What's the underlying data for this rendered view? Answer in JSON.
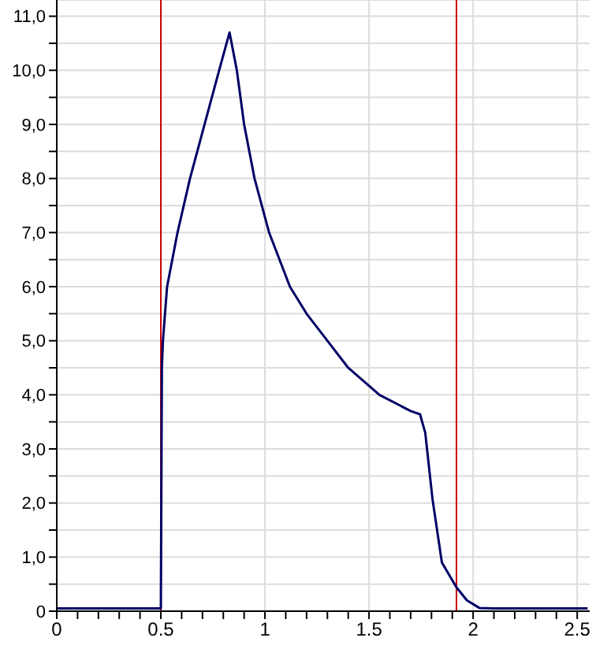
{
  "chart_data": {
    "type": "line",
    "x": [
      0,
      0.1,
      0.2,
      0.3,
      0.4,
      0.49,
      0.5,
      0.505,
      0.51,
      0.53,
      0.58,
      0.64,
      0.71,
      0.78,
      0.83,
      0.865,
      0.9,
      0.95,
      1.02,
      1.12,
      1.2,
      1.3,
      1.4,
      1.55,
      1.65,
      1.7,
      1.745,
      1.77,
      1.805,
      1.85,
      1.92,
      1.97,
      2.03,
      2.1,
      2.2,
      2.3,
      2.4,
      2.55
    ],
    "series": [
      {
        "color": "#000066",
        "values": [
          0.05,
          0.05,
          0.05,
          0.05,
          0.05,
          0.05,
          0.05,
          4.5,
          5.0,
          6.0,
          7.0,
          8.0,
          9.0,
          10.0,
          10.7,
          10.0,
          9.0,
          8.0,
          7.0,
          6.0,
          5.5,
          5.0,
          4.5,
          4.0,
          3.8,
          3.7,
          3.64,
          3.3,
          2.07,
          0.9,
          0.44,
          0.2,
          0.06,
          0.05,
          0.05,
          0.05,
          0.05,
          0.05
        ]
      }
    ],
    "xlim": [
      0,
      2.56
    ],
    "ylim": [
      0,
      11.3
    ],
    "xticks": [
      0,
      {
        "value": 0.1,
        "label": null
      },
      {
        "value": 0.2,
        "label": null
      },
      {
        "value": 0.3,
        "label": null
      },
      {
        "value": 0.4,
        "label": null
      },
      0.5,
      {
        "value": 0.6,
        "label": null
      },
      {
        "value": 0.7,
        "label": null
      },
      {
        "value": 0.8,
        "label": null
      },
      {
        "value": 0.9,
        "label": null
      },
      1,
      {
        "value": 1.1,
        "label": null
      },
      {
        "value": 1.2,
        "label": null
      },
      {
        "value": 1.3,
        "label": null
      },
      {
        "value": 1.4,
        "label": null
      },
      1.5,
      {
        "value": 1.6,
        "label": null
      },
      {
        "value": 1.7,
        "label": null
      },
      {
        "value": 1.8,
        "label": null
      },
      {
        "value": 1.9,
        "label": null
      },
      2,
      {
        "value": 2.1,
        "label": null
      },
      {
        "value": 2.2,
        "label": null
      },
      {
        "value": 2.3,
        "label": null
      },
      {
        "value": 2.4,
        "label": null
      },
      2.5
    ],
    "yticks": [
      0,
      {
        "value": 0.5,
        "label": null
      },
      {
        "value": 1,
        "label": "1,0"
      },
      {
        "value": 1.5,
        "label": null
      },
      {
        "value": 2,
        "label": "2,0"
      },
      {
        "value": 2.5,
        "label": null
      },
      {
        "value": 3,
        "label": "3,0"
      },
      {
        "value": 3.5,
        "label": null
      },
      {
        "value": 4,
        "label": "4,0"
      },
      {
        "value": 4.5,
        "label": null
      },
      {
        "value": 5,
        "label": "5,0"
      },
      {
        "value": 5.5,
        "label": null
      },
      {
        "value": 6,
        "label": "6,0"
      },
      {
        "value": 6.5,
        "label": null
      },
      {
        "value": 7,
        "label": "7,0"
      },
      {
        "value": 7.5,
        "label": null
      },
      {
        "value": 8,
        "label": "8,0"
      },
      {
        "value": 8.5,
        "label": null
      },
      {
        "value": 9,
        "label": "9,0"
      },
      {
        "value": 9.5,
        "label": null
      },
      {
        "value": 10,
        "label": "10,0"
      },
      {
        "value": 10.5,
        "label": null
      },
      {
        "value": 11,
        "label": "11,0"
      }
    ],
    "grid": true,
    "marker": "none",
    "line_style": "solid",
    "ref_lines": [
      {
        "axis": "x",
        "value": 0.5,
        "color": "#cc0000"
      },
      {
        "axis": "x",
        "value": 1.92,
        "color": "#cc0000"
      }
    ]
  }
}
